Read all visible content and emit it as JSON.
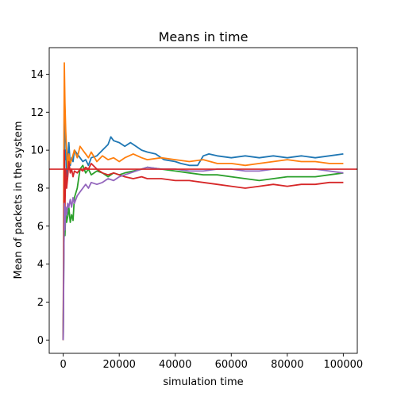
{
  "chart_data": {
    "type": "line",
    "title": "Means in time",
    "xlabel": "simulation time",
    "ylabel": "Mean of packets in the system",
    "xlim": [
      -5000,
      105000
    ],
    "ylim": [
      -0.7,
      15.4
    ],
    "xticks": [
      0,
      20000,
      40000,
      60000,
      80000,
      100000
    ],
    "xtick_labels": [
      "0",
      "20000",
      "40000",
      "60000",
      "80000",
      "100000"
    ],
    "yticks": [
      0,
      2,
      4,
      6,
      8,
      10,
      12,
      14
    ],
    "ytick_labels": [
      "0",
      "2",
      "4",
      "6",
      "8",
      "10",
      "12",
      "14"
    ],
    "grid": false,
    "reference_line": {
      "y": 9,
      "color": "#d62728"
    },
    "series": [
      {
        "color": "#1f77b4",
        "x": [
          0,
          200,
          400,
          600,
          900,
          1200,
          1600,
          2000,
          2500,
          3000,
          3500,
          4000,
          5000,
          6000,
          7000,
          8000,
          9000,
          10000,
          12000,
          14000,
          16000,
          17000,
          18000,
          20000,
          22000,
          24000,
          26000,
          28000,
          30000,
          33000,
          36000,
          40000,
          42000,
          45000,
          48000,
          50000,
          52000,
          55000,
          60000,
          65000,
          70000,
          75000,
          80000,
          85000,
          90000,
          95000,
          100000
        ],
        "y": [
          0,
          6.5,
          13.5,
          9.5,
          10.0,
          8.6,
          9.5,
          10.4,
          9.2,
          9.6,
          9.4,
          10.0,
          9.8,
          9.6,
          9.4,
          9.5,
          9.2,
          9.6,
          9.7,
          10.0,
          10.3,
          10.7,
          10.5,
          10.4,
          10.2,
          10.4,
          10.2,
          10.0,
          9.9,
          9.8,
          9.5,
          9.4,
          9.3,
          9.2,
          9.2,
          9.7,
          9.8,
          9.7,
          9.6,
          9.7,
          9.6,
          9.7,
          9.6,
          9.7,
          9.6,
          9.7,
          9.8
        ]
      },
      {
        "color": "#ff7f0e",
        "x": [
          0,
          200,
          400,
          600,
          900,
          1200,
          1600,
          2000,
          2500,
          3000,
          4000,
          5000,
          6000,
          7000,
          8000,
          9000,
          10000,
          12000,
          14000,
          16000,
          18000,
          20000,
          22000,
          25000,
          28000,
          30000,
          35000,
          40000,
          45000,
          50000,
          55000,
          60000,
          65000,
          70000,
          75000,
          80000,
          85000,
          90000,
          95000,
          100000
        ],
        "y": [
          0,
          8.5,
          14.6,
          12.5,
          11.0,
          10.0,
          9.0,
          9.8,
          9.3,
          9.5,
          10.0,
          9.6,
          10.2,
          10.0,
          9.8,
          9.6,
          9.9,
          9.4,
          9.7,
          9.5,
          9.6,
          9.4,
          9.6,
          9.8,
          9.6,
          9.5,
          9.6,
          9.5,
          9.4,
          9.5,
          9.3,
          9.3,
          9.2,
          9.3,
          9.4,
          9.5,
          9.4,
          9.4,
          9.3,
          9.3
        ]
      },
      {
        "color": "#2ca02c",
        "x": [
          0,
          200,
          400,
          600,
          900,
          1200,
          1600,
          2000,
          2500,
          3000,
          3500,
          4000,
          5000,
          6000,
          7000,
          8000,
          9000,
          10000,
          12000,
          14000,
          16000,
          18000,
          20000,
          22000,
          25000,
          28000,
          30000,
          35000,
          40000,
          45000,
          50000,
          55000,
          60000,
          65000,
          70000,
          75000,
          80000,
          85000,
          90000,
          95000,
          100000
        ],
        "y": [
          0,
          4.0,
          6.5,
          5.5,
          6.8,
          6.2,
          6.5,
          7.0,
          6.2,
          6.6,
          6.3,
          7.5,
          8.0,
          9.0,
          9.2,
          8.8,
          9.0,
          8.7,
          8.9,
          8.8,
          8.6,
          8.8,
          8.7,
          8.8,
          8.9,
          9.0,
          9.1,
          9.0,
          8.9,
          8.8,
          8.7,
          8.7,
          8.6,
          8.5,
          8.4,
          8.5,
          8.6,
          8.6,
          8.6,
          8.7,
          8.8
        ]
      },
      {
        "color": "#d62728",
        "x": [
          0,
          200,
          400,
          600,
          900,
          1200,
          1600,
          2000,
          2500,
          3000,
          3500,
          4000,
          5000,
          6000,
          7000,
          8000,
          9000,
          10000,
          12000,
          14000,
          16000,
          18000,
          20000,
          22000,
          25000,
          28000,
          30000,
          35000,
          40000,
          45000,
          50000,
          55000,
          60000,
          65000,
          70000,
          75000,
          80000,
          85000,
          90000,
          95000,
          100000
        ],
        "y": [
          0,
          5.0,
          10.0,
          7.0,
          9.0,
          8.0,
          8.6,
          9.4,
          8.8,
          9.0,
          8.6,
          8.9,
          8.8,
          9.0,
          8.9,
          9.1,
          9.0,
          9.3,
          9.0,
          8.8,
          8.7,
          8.8,
          8.7,
          8.6,
          8.5,
          8.6,
          8.5,
          8.5,
          8.4,
          8.4,
          8.3,
          8.2,
          8.1,
          8.0,
          8.1,
          8.2,
          8.1,
          8.2,
          8.2,
          8.3,
          8.3
        ]
      },
      {
        "color": "#9467bd",
        "x": [
          0,
          200,
          400,
          600,
          900,
          1200,
          1600,
          2000,
          2500,
          3000,
          3500,
          4000,
          5000,
          6000,
          7000,
          8000,
          9000,
          10000,
          12000,
          14000,
          16000,
          18000,
          20000,
          22000,
          24000,
          26000,
          28000,
          30000,
          35000,
          40000,
          45000,
          50000,
          55000,
          60000,
          65000,
          70000,
          75000,
          80000,
          85000,
          90000,
          95000,
          100000
        ],
        "y": [
          0,
          3.5,
          7.2,
          5.8,
          7.0,
          6.6,
          7.2,
          7.0,
          7.4,
          7.0,
          7.5,
          7.2,
          7.6,
          7.8,
          8.0,
          8.2,
          8.0,
          8.3,
          8.2,
          8.3,
          8.5,
          8.4,
          8.6,
          8.7,
          8.8,
          8.9,
          9.0,
          9.1,
          9.0,
          9.0,
          8.9,
          8.9,
          9.0,
          9.0,
          8.9,
          8.9,
          9.0,
          9.0,
          9.0,
          9.0,
          8.9,
          8.8
        ]
      }
    ]
  }
}
